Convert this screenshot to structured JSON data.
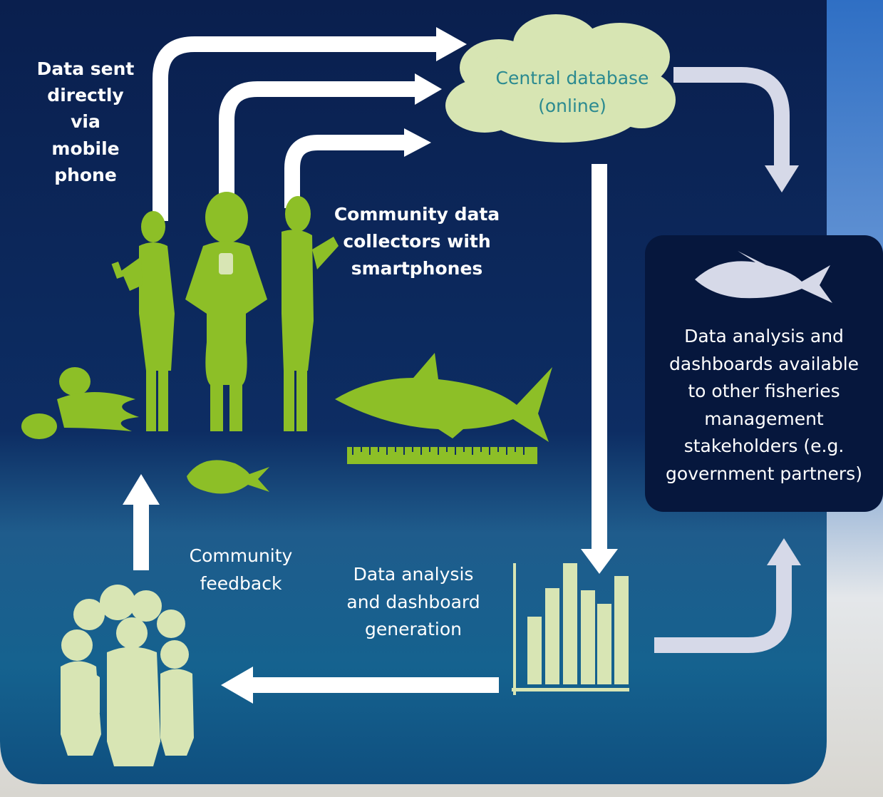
{
  "mobile_upload": [
    "Data sent",
    "directly",
    "via",
    "mobile",
    "phone"
  ],
  "central_database": [
    "Central database",
    "(online)"
  ],
  "collectors": [
    "Community data",
    "collectors with",
    "smartphones"
  ],
  "stakeholders": [
    "Data analysis and",
    "dashboards available",
    "to other fisheries",
    "management",
    "stakeholders (e.g.",
    "government partners)"
  ],
  "feedback": [
    "Community",
    "feedback"
  ],
  "analysis": [
    "Data analysis",
    "and dashboard",
    "generation"
  ]
}
